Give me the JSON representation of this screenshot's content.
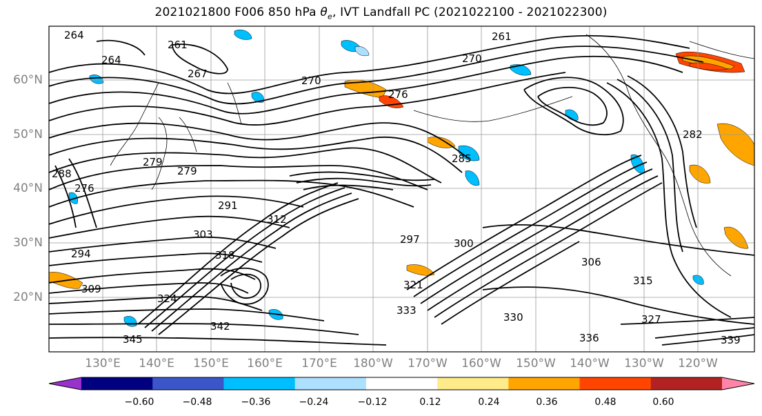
{
  "title": "2021021800 F006 850 hPa θe, IVT Landfall PC (2021022100 - 2021022300)",
  "title_prefix": "2021021800 F006 850 hPa ",
  "title_theta": "θ",
  "title_sub": "e",
  "title_suffix": ", IVT Landfall PC (2021022100 - 2021022300)",
  "lat_labels": [
    "60°N",
    "50°N",
    "40°N",
    "30°N",
    "20°N"
  ],
  "lon_labels": [
    "130°E",
    "140°E",
    "150°E",
    "160°E",
    "170°E",
    "180°W",
    "170°W",
    "160°W",
    "150°W",
    "140°W",
    "130°W",
    "120°W"
  ],
  "contour_labels": [
    "264",
    "261",
    "264",
    "267",
    "270",
    "276",
    "261",
    "270",
    "279",
    "279",
    "276",
    "282",
    "285",
    "288",
    "291",
    "294",
    "297",
    "300",
    "303",
    "306",
    "309",
    "312",
    "315",
    "318",
    "321",
    "324",
    "327",
    "330",
    "333",
    "336",
    "339",
    "342",
    "345"
  ],
  "colorbar": {
    "ticks": [
      "−0.60",
      "−0.48",
      "−0.36",
      "−0.24",
      "−0.12",
      "0.12",
      "0.24",
      "0.36",
      "0.48",
      "0.60"
    ],
    "colors": [
      "#9932CC",
      "#000080",
      "#3A56C8",
      "#00BFFF",
      "#ADDFFF",
      "#FFFFFF",
      "#FFEB8A",
      "#FFA500",
      "#FF4500",
      "#B22222",
      "#FF85A8"
    ]
  }
}
